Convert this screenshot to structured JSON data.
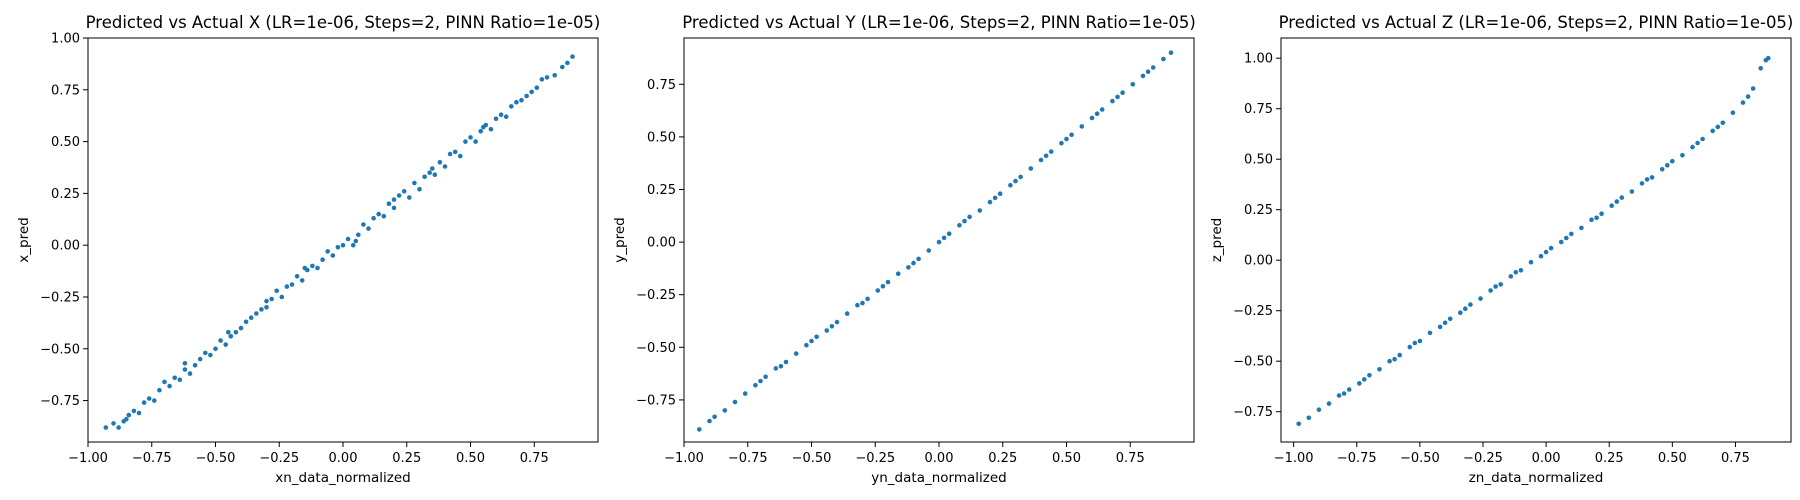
{
  "chart_data": [
    {
      "type": "scatter",
      "title": "Predicted vs Actual X (LR=1e-06, Steps=2, PINN Ratio=1e-05)",
      "xlabel": "xn_data_normalized",
      "ylabel": "x_pred",
      "xlim": [
        -1.0,
        1.0
      ],
      "ylim": [
        -0.95,
        1.0
      ],
      "xticks": [
        -1.0,
        -0.75,
        -0.5,
        -0.25,
        0.0,
        0.25,
        0.5,
        0.75
      ],
      "yticks": [
        -0.75,
        -0.5,
        -0.25,
        0.0,
        0.25,
        0.5,
        0.75,
        1.0
      ],
      "grid": false,
      "color": "#1f77b4",
      "points": [
        [
          -0.93,
          -0.88
        ],
        [
          -0.9,
          -0.86
        ],
        [
          -0.88,
          -0.88
        ],
        [
          -0.86,
          -0.85
        ],
        [
          -0.84,
          -0.82
        ],
        [
          -0.82,
          -0.8
        ],
        [
          -0.8,
          -0.81
        ],
        [
          -0.78,
          -0.76
        ],
        [
          -0.76,
          -0.74
        ],
        [
          -0.74,
          -0.75
        ],
        [
          -0.72,
          -0.7
        ],
        [
          -0.7,
          -0.66
        ],
        [
          -0.68,
          -0.68
        ],
        [
          -0.66,
          -0.64
        ],
        [
          -0.64,
          -0.65
        ],
        [
          -0.62,
          -0.6
        ],
        [
          -0.6,
          -0.62
        ],
        [
          -0.58,
          -0.58
        ],
        [
          -0.56,
          -0.55
        ],
        [
          -0.54,
          -0.52
        ],
        [
          -0.52,
          -0.53
        ],
        [
          -0.5,
          -0.5
        ],
        [
          -0.48,
          -0.46
        ],
        [
          -0.46,
          -0.48
        ],
        [
          -0.44,
          -0.44
        ],
        [
          -0.42,
          -0.42
        ],
        [
          -0.4,
          -0.4
        ],
        [
          -0.38,
          -0.37
        ],
        [
          -0.36,
          -0.35
        ],
        [
          -0.34,
          -0.33
        ],
        [
          -0.32,
          -0.31
        ],
        [
          -0.3,
          -0.3
        ],
        [
          -0.28,
          -0.26
        ],
        [
          -0.26,
          -0.22
        ],
        [
          -0.24,
          -0.25
        ],
        [
          -0.22,
          -0.2
        ],
        [
          -0.2,
          -0.19
        ],
        [
          -0.18,
          -0.15
        ],
        [
          -0.16,
          -0.17
        ],
        [
          -0.14,
          -0.12
        ],
        [
          -0.12,
          -0.1
        ],
        [
          -0.1,
          -0.11
        ],
        [
          -0.08,
          -0.07
        ],
        [
          -0.06,
          -0.03
        ],
        [
          -0.04,
          -0.05
        ],
        [
          -0.02,
          -0.01
        ],
        [
          0.0,
          0.0
        ],
        [
          0.02,
          0.03
        ],
        [
          0.04,
          0.0
        ],
        [
          0.06,
          0.05
        ],
        [
          0.08,
          0.1
        ],
        [
          0.1,
          0.08
        ],
        [
          0.12,
          0.13
        ],
        [
          0.14,
          0.15
        ],
        [
          0.16,
          0.14
        ],
        [
          0.18,
          0.2
        ],
        [
          0.2,
          0.18
        ],
        [
          0.22,
          0.24
        ],
        [
          0.24,
          0.26
        ],
        [
          0.26,
          0.23
        ],
        [
          0.28,
          0.3
        ],
        [
          0.3,
          0.27
        ],
        [
          0.32,
          0.33
        ],
        [
          0.34,
          0.35
        ],
        [
          0.36,
          0.34
        ],
        [
          0.38,
          0.4
        ],
        [
          0.4,
          0.38
        ],
        [
          0.42,
          0.44
        ],
        [
          0.44,
          0.45
        ],
        [
          0.46,
          0.43
        ],
        [
          0.48,
          0.5
        ],
        [
          0.5,
          0.52
        ],
        [
          0.52,
          0.5
        ],
        [
          0.54,
          0.55
        ],
        [
          0.56,
          0.58
        ],
        [
          0.58,
          0.56
        ],
        [
          0.6,
          0.61
        ],
        [
          0.62,
          0.63
        ],
        [
          0.64,
          0.62
        ],
        [
          0.66,
          0.67
        ],
        [
          0.68,
          0.69
        ],
        [
          0.7,
          0.7
        ],
        [
          0.72,
          0.72
        ],
        [
          0.74,
          0.74
        ],
        [
          0.76,
          0.76
        ],
        [
          0.78,
          0.8
        ],
        [
          0.8,
          0.81
        ],
        [
          0.83,
          0.82
        ],
        [
          0.86,
          0.86
        ],
        [
          0.88,
          0.88
        ],
        [
          0.9,
          0.91
        ],
        [
          -0.85,
          -0.84
        ],
        [
          -0.62,
          -0.57
        ],
        [
          -0.45,
          -0.42
        ],
        [
          -0.3,
          -0.27
        ],
        [
          -0.15,
          -0.11
        ],
        [
          0.05,
          0.02
        ],
        [
          0.2,
          0.22
        ],
        [
          0.35,
          0.37
        ],
        [
          0.55,
          0.57
        ]
      ]
    },
    {
      "type": "scatter",
      "title": "Predicted vs Actual Y (LR=1e-06, Steps=2, PINN Ratio=1e-05)",
      "xlabel": "yn_data_normalized",
      "ylabel": "y_pred",
      "xlim": [
        -1.0,
        1.0
      ],
      "ylim": [
        -0.95,
        0.97
      ],
      "xticks": [
        -1.0,
        -0.75,
        -0.5,
        -0.25,
        0.0,
        0.25,
        0.5,
        0.75
      ],
      "yticks": [
        -0.75,
        -0.5,
        -0.25,
        0.0,
        0.25,
        0.5,
        0.75
      ],
      "grid": false,
      "color": "#1f77b4",
      "points": [
        [
          -0.94,
          -0.89
        ],
        [
          -0.9,
          -0.85
        ],
        [
          -0.88,
          -0.83
        ],
        [
          -0.84,
          -0.8
        ],
        [
          -0.8,
          -0.76
        ],
        [
          -0.76,
          -0.72
        ],
        [
          -0.72,
          -0.68
        ],
        [
          -0.68,
          -0.64
        ],
        [
          -0.64,
          -0.6
        ],
        [
          -0.6,
          -0.57
        ],
        [
          -0.56,
          -0.53
        ],
        [
          -0.52,
          -0.49
        ],
        [
          -0.48,
          -0.45
        ],
        [
          -0.44,
          -0.42
        ],
        [
          -0.4,
          -0.38
        ],
        [
          -0.36,
          -0.34
        ],
        [
          -0.32,
          -0.3
        ],
        [
          -0.28,
          -0.27
        ],
        [
          -0.24,
          -0.23
        ],
        [
          -0.2,
          -0.19
        ],
        [
          -0.16,
          -0.15
        ],
        [
          -0.12,
          -0.12
        ],
        [
          -0.08,
          -0.08
        ],
        [
          -0.04,
          -0.04
        ],
        [
          0.0,
          0.0
        ],
        [
          0.04,
          0.04
        ],
        [
          0.08,
          0.08
        ],
        [
          0.12,
          0.12
        ],
        [
          0.16,
          0.15
        ],
        [
          0.2,
          0.19
        ],
        [
          0.24,
          0.23
        ],
        [
          0.28,
          0.27
        ],
        [
          0.32,
          0.31
        ],
        [
          0.36,
          0.35
        ],
        [
          0.4,
          0.39
        ],
        [
          0.44,
          0.43
        ],
        [
          0.48,
          0.47
        ],
        [
          0.52,
          0.51
        ],
        [
          0.56,
          0.55
        ],
        [
          0.6,
          0.59
        ],
        [
          0.64,
          0.63
        ],
        [
          0.68,
          0.67
        ],
        [
          0.72,
          0.71
        ],
        [
          0.76,
          0.75
        ],
        [
          0.8,
          0.79
        ],
        [
          0.84,
          0.83
        ],
        [
          0.88,
          0.87
        ],
        [
          0.91,
          0.9
        ],
        [
          -0.7,
          -0.66
        ],
        [
          -0.5,
          -0.47
        ],
        [
          -0.3,
          -0.29
        ],
        [
          -0.1,
          -0.1
        ],
        [
          0.1,
          0.1
        ],
        [
          0.3,
          0.29
        ],
        [
          0.5,
          0.49
        ],
        [
          0.7,
          0.69
        ],
        [
          -0.62,
          -0.59
        ],
        [
          -0.42,
          -0.4
        ],
        [
          -0.22,
          -0.21
        ],
        [
          0.02,
          0.02
        ],
        [
          0.22,
          0.21
        ],
        [
          0.42,
          0.41
        ],
        [
          0.62,
          0.61
        ],
        [
          0.82,
          0.81
        ]
      ]
    },
    {
      "type": "scatter",
      "title": "Predicted vs Actual Z (LR=1e-06, Steps=2, PINN Ratio=1e-05)",
      "xlabel": "zn_data_normalized",
      "ylabel": "z_pred",
      "xlim": [
        -1.05,
        0.97
      ],
      "ylim": [
        -0.9,
        1.1
      ],
      "xticks": [
        -1.0,
        -0.75,
        -0.5,
        -0.25,
        0.0,
        0.25,
        0.5,
        0.75
      ],
      "yticks": [
        -0.75,
        -0.5,
        -0.25,
        0.0,
        0.25,
        0.5,
        0.75,
        1.0
      ],
      "grid": false,
      "color": "#1f77b4",
      "points": [
        [
          -0.98,
          -0.81
        ],
        [
          -0.94,
          -0.78
        ],
        [
          -0.9,
          -0.74
        ],
        [
          -0.86,
          -0.71
        ],
        [
          -0.82,
          -0.67
        ],
        [
          -0.78,
          -0.64
        ],
        [
          -0.74,
          -0.61
        ],
        [
          -0.7,
          -0.57
        ],
        [
          -0.66,
          -0.54
        ],
        [
          -0.62,
          -0.5
        ],
        [
          -0.58,
          -0.47
        ],
        [
          -0.54,
          -0.43
        ],
        [
          -0.5,
          -0.4
        ],
        [
          -0.46,
          -0.36
        ],
        [
          -0.42,
          -0.33
        ],
        [
          -0.38,
          -0.29
        ],
        [
          -0.34,
          -0.26
        ],
        [
          -0.3,
          -0.22
        ],
        [
          -0.26,
          -0.19
        ],
        [
          -0.22,
          -0.15
        ],
        [
          -0.18,
          -0.12
        ],
        [
          -0.14,
          -0.08
        ],
        [
          -0.1,
          -0.05
        ],
        [
          -0.06,
          -0.01
        ],
        [
          -0.02,
          0.02
        ],
        [
          0.02,
          0.06
        ],
        [
          0.06,
          0.09
        ],
        [
          0.1,
          0.13
        ],
        [
          0.14,
          0.16
        ],
        [
          0.18,
          0.2
        ],
        [
          0.22,
          0.23
        ],
        [
          0.26,
          0.27
        ],
        [
          0.3,
          0.31
        ],
        [
          0.34,
          0.34
        ],
        [
          0.38,
          0.38
        ],
        [
          0.42,
          0.41
        ],
        [
          0.46,
          0.45
        ],
        [
          0.5,
          0.49
        ],
        [
          0.54,
          0.52
        ],
        [
          0.58,
          0.56
        ],
        [
          0.62,
          0.6
        ],
        [
          0.66,
          0.64
        ],
        [
          0.7,
          0.68
        ],
        [
          0.74,
          0.73
        ],
        [
          0.78,
          0.78
        ],
        [
          0.82,
          0.85
        ],
        [
          0.85,
          0.95
        ],
        [
          0.87,
          0.99
        ],
        [
          0.88,
          1.0
        ],
        [
          -0.8,
          -0.66
        ],
        [
          -0.6,
          -0.49
        ],
        [
          -0.4,
          -0.31
        ],
        [
          -0.2,
          -0.13
        ],
        [
          0.0,
          0.04
        ],
        [
          0.2,
          0.21
        ],
        [
          0.4,
          0.4
        ],
        [
          0.6,
          0.58
        ],
        [
          0.8,
          0.81
        ],
        [
          -0.72,
          -0.59
        ],
        [
          -0.52,
          -0.41
        ],
        [
          -0.32,
          -0.24
        ],
        [
          -0.12,
          -0.06
        ],
        [
          0.08,
          0.11
        ],
        [
          0.28,
          0.29
        ],
        [
          0.48,
          0.47
        ],
        [
          0.68,
          0.66
        ]
      ]
    }
  ]
}
